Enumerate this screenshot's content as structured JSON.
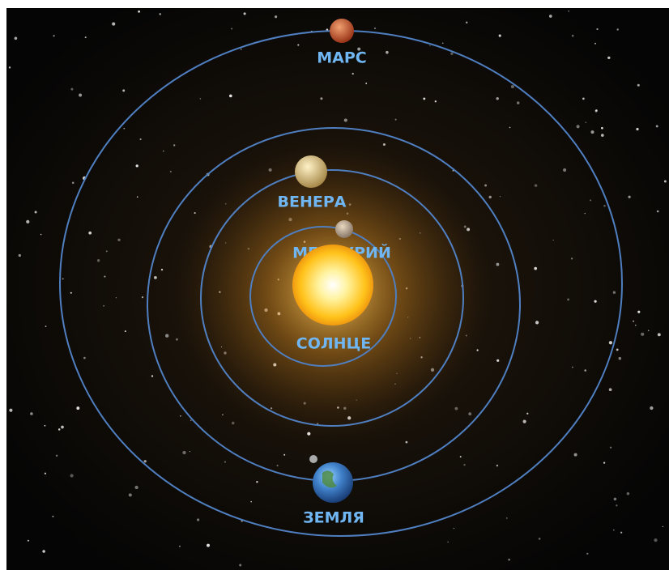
{
  "planets": [
    {
      "label": "МАРС"
    },
    {
      "label": "ВЕНЕРА"
    },
    {
      "label": "МЕРКУРИЙ"
    },
    {
      "label": "СОЛНЦЕ"
    },
    {
      "label": "ЗЕМЛЯ"
    }
  ]
}
